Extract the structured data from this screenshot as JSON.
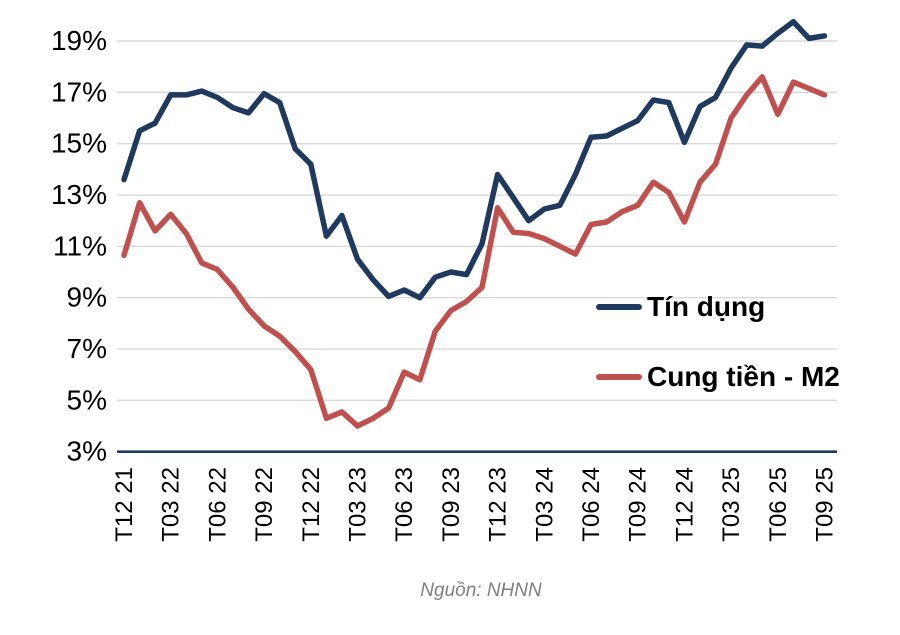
{
  "chart": {
    "source_note": "Nguồn: NHNN",
    "colors": {
      "credit_line": "#20395f",
      "m2_line": "#c0504d",
      "gridline": "#d9d9d9",
      "axis_line": "#20395f",
      "label_text": "#000000",
      "source_text": "#7f7f7f"
    }
  },
  "chart_data": {
    "type": "line",
    "title": "",
    "xlabel": "",
    "ylabel": "",
    "grid": true,
    "legend_position": "center-right",
    "ylim": [
      3,
      20
    ],
    "y_tick_labels": [
      "3%",
      "5%",
      "7%",
      "9%",
      "11%",
      "13%",
      "15%",
      "17%",
      "19%"
    ],
    "y_tick_values": [
      3,
      5,
      7,
      9,
      11,
      13,
      15,
      17,
      19
    ],
    "tick_every": 3,
    "x": [
      "T12 21",
      "T01 22",
      "T02 22",
      "T03 22",
      "T04 22",
      "T05 22",
      "T06 22",
      "T07 22",
      "T08 22",
      "T09 22",
      "T10 22",
      "T11 22",
      "T12 22",
      "T01 23",
      "T02 23",
      "T03 23",
      "T04 23",
      "T05 23",
      "T06 23",
      "T07 23",
      "T08 23",
      "T09 23",
      "T10 23",
      "T11 23",
      "T12 23",
      "T01 24",
      "T02 24",
      "T03 24",
      "T04 24",
      "T05 24",
      "T06 24",
      "T07 24",
      "T08 24",
      "T09 24",
      "T10 24",
      "T11 24",
      "T12 24",
      "T01 25",
      "T02 25",
      "T03 25",
      "T04 25",
      "T05 25",
      "T06 25",
      "T07 25",
      "T08 25",
      "T09 25"
    ],
    "x_tick_labels": [
      "T12 21",
      "T03 22",
      "T06 22",
      "T09 22",
      "T12 22",
      "T03 23",
      "T06 23",
      "T09 23",
      "T12 23",
      "T03 24",
      "T06 24",
      "T09 24",
      "T12 24",
      "T03 25",
      "T06 25",
      "T09 25"
    ],
    "series": [
      {
        "name": "Tín dụng",
        "color": "#20395f",
        "values": [
          13.6,
          15.5,
          15.8,
          16.9,
          16.9,
          17.05,
          16.8,
          16.4,
          16.2,
          16.95,
          16.6,
          14.8,
          14.2,
          11.4,
          12.2,
          10.5,
          9.7,
          9.05,
          9.3,
          9.0,
          9.8,
          10.0,
          9.9,
          11.1,
          13.8,
          12.9,
          12.0,
          12.45,
          12.6,
          13.8,
          15.25,
          15.3,
          15.6,
          15.9,
          16.7,
          16.6,
          15.05,
          16.45,
          16.8,
          17.95,
          18.85,
          18.8,
          19.3,
          19.75,
          19.1,
          19.2
        ]
      },
      {
        "name": "Cung tiền - M2",
        "color": "#c0504d",
        "values": [
          10.65,
          12.7,
          11.6,
          12.25,
          11.5,
          10.35,
          10.1,
          9.4,
          8.55,
          7.9,
          7.5,
          6.9,
          6.2,
          4.3,
          4.55,
          4.0,
          4.3,
          4.7,
          6.1,
          5.8,
          7.7,
          8.5,
          8.85,
          9.4,
          12.5,
          11.55,
          11.5,
          11.3,
          11.0,
          10.7,
          11.85,
          11.95,
          12.35,
          12.6,
          13.5,
          13.1,
          11.95,
          13.5,
          14.2,
          16.0,
          16.9,
          17.6,
          16.15,
          17.4,
          17.15,
          16.9
        ]
      }
    ],
    "source": "Nguồn: NHNN"
  }
}
